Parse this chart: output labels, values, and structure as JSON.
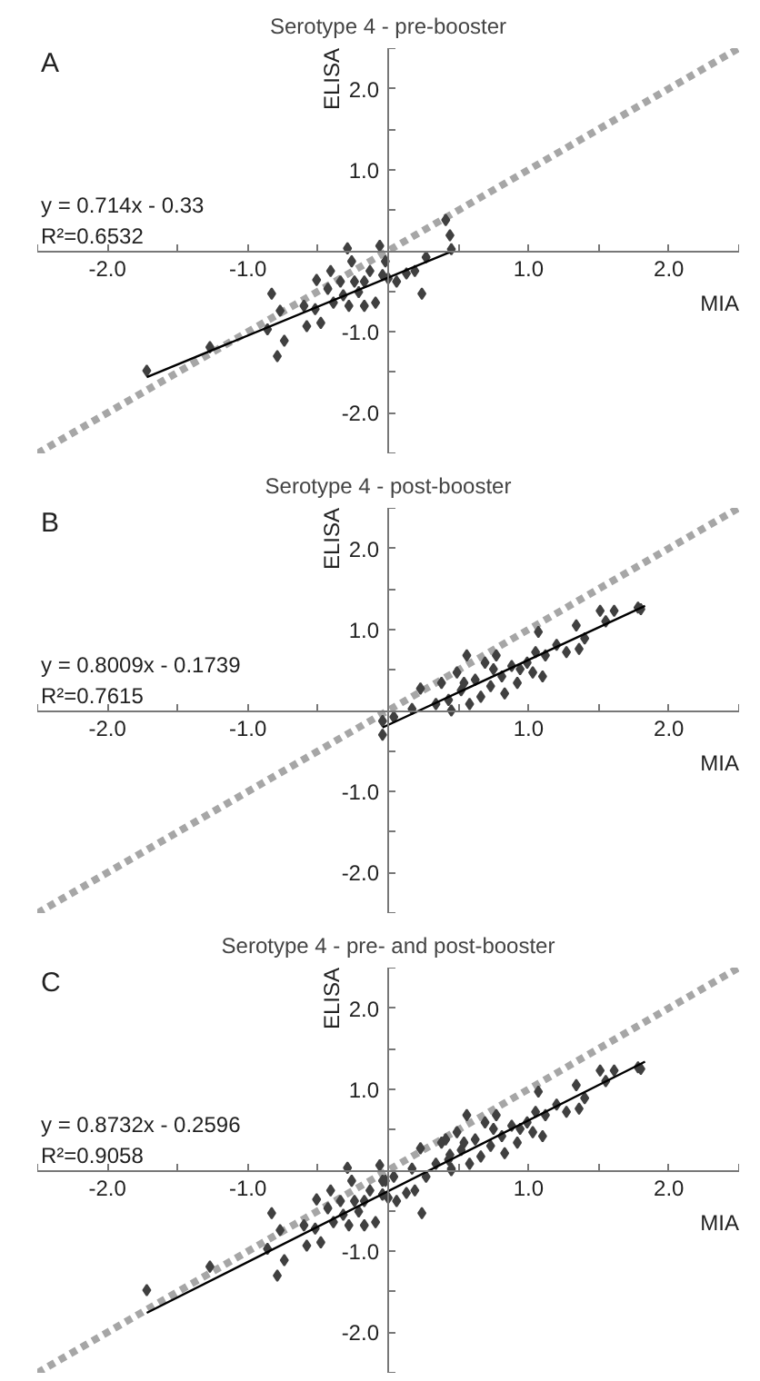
{
  "chart_data": [
    {
      "type": "scatter",
      "title": "Serotype 4 - pre-booster",
      "xlabel": "MIA",
      "ylabel": "ELISA",
      "annotations": [
        "A",
        "y = 0.714x - 0.33",
        "R²=0.6532"
      ],
      "xlim": [
        -2.5,
        2.5
      ],
      "ylim": [
        -2.5,
        2.5
      ],
      "xticks": [
        {
          "value": -2.5,
          "label": null
        },
        {
          "value": -2,
          "label": "-2.0"
        },
        {
          "value": -1.5,
          "label": null
        },
        {
          "value": -1,
          "label": "-1.0"
        },
        {
          "value": -0.5,
          "label": null
        },
        {
          "value": 0.5,
          "label": null
        },
        {
          "value": 1,
          "label": "1.0"
        },
        {
          "value": 1.5,
          "label": null
        },
        {
          "value": 2,
          "label": "2.0"
        },
        {
          "value": 2.5,
          "label": null
        }
      ],
      "yticks": [
        {
          "value": -2.5,
          "label": null
        },
        {
          "value": -2,
          "label": "-2.0"
        },
        {
          "value": -1.5,
          "label": null
        },
        {
          "value": -1,
          "label": "-1.0"
        },
        {
          "value": -0.5,
          "label": null
        },
        {
          "value": 0.5,
          "label": null
        },
        {
          "value": 1,
          "label": "1.0"
        },
        {
          "value": 1.5,
          "label": null
        },
        {
          "value": 2,
          "label": "2.0"
        },
        {
          "value": 2.5,
          "label": null
        }
      ],
      "grid": false,
      "series": [
        {
          "type": "line",
          "color": "#a6a6a6",
          "line_style": "dashed",
          "x": [
            -2.5,
            2.5
          ],
          "values": [
            -2.5,
            2.5
          ]
        },
        {
          "marker": "diamond",
          "color": "#404040",
          "x": [
            -1.72,
            -1.27,
            -0.83,
            -0.86,
            -0.79,
            -0.74,
            -0.77,
            -0.58,
            -0.51,
            -0.48,
            -0.43,
            -0.39,
            -0.34,
            -0.29,
            -0.28,
            -0.26,
            -0.21,
            -0.17,
            -0.13,
            -0.09,
            -0.06,
            -0.02,
            0,
            0.06,
            0.13,
            0.19,
            0.24,
            0.27,
            0.41,
            0.44,
            0.45,
            -0.52,
            -0.32,
            -0.17,
            -0.41,
            -0.04,
            -0.6,
            -0.24
          ],
          "values": [
            -1.48,
            -1.19,
            -0.53,
            -0.97,
            -1.3,
            -1.11,
            -0.74,
            -0.93,
            -0.36,
            -0.89,
            -0.47,
            -0.64,
            -0.38,
            0.03,
            -0.68,
            -0.13,
            -0.51,
            -0.38,
            -0.25,
            -0.64,
            0.06,
            -0.13,
            -0.34,
            -0.38,
            -0.28,
            -0.25,
            -0.53,
            -0.08,
            0.38,
            0.19,
            0.02,
            -0.72,
            -0.55,
            -0.68,
            -0.25,
            -0.3,
            -0.68,
            -0.38
          ]
        },
        {
          "type": "line",
          "color": "#000000",
          "line_style": "solid",
          "x": [
            -1.72,
            0.45
          ],
          "values": [
            -1.56,
            -0.01
          ]
        }
      ]
    },
    {
      "type": "scatter",
      "title": "Serotype 4 - post-booster",
      "xlabel": "MIA",
      "ylabel": "ELISA",
      "annotations": [
        "B",
        "y = 0.8009x - 0.1739",
        "R²=0.7615"
      ],
      "xlim": [
        -2.5,
        2.5
      ],
      "ylim": [
        -2.5,
        2.5
      ],
      "xticks": [
        {
          "value": -2.5,
          "label": null
        },
        {
          "value": -2,
          "label": "-2.0"
        },
        {
          "value": -1.5,
          "label": null
        },
        {
          "value": -1,
          "label": "-1.0"
        },
        {
          "value": -0.5,
          "label": null
        },
        {
          "value": 0.5,
          "label": null
        },
        {
          "value": 1,
          "label": "1.0"
        },
        {
          "value": 1.5,
          "label": null
        },
        {
          "value": 2,
          "label": "2.0"
        },
        {
          "value": 2.5,
          "label": null
        }
      ],
      "yticks": [
        {
          "value": -2.5,
          "label": null
        },
        {
          "value": -2,
          "label": "-2.0"
        },
        {
          "value": -1.5,
          "label": null
        },
        {
          "value": -1,
          "label": "-1.0"
        },
        {
          "value": -0.5,
          "label": null
        },
        {
          "value": 0.5,
          "label": null
        },
        {
          "value": 1,
          "label": "1.0"
        },
        {
          "value": 1.5,
          "label": null
        },
        {
          "value": 2,
          "label": "2.0"
        },
        {
          "value": 2.5,
          "label": null
        }
      ],
      "grid": false,
      "series": [
        {
          "type": "line",
          "color": "#a6a6a6",
          "line_style": "dashed",
          "x": [
            -2.5,
            2.5
          ],
          "values": [
            -2.5,
            2.5
          ]
        },
        {
          "marker": "diamond",
          "color": "#404040",
          "x": [
            -0.04,
            -0.04,
            0.04,
            0.17,
            0.23,
            0.43,
            0.45,
            0.49,
            0.52,
            0.56,
            0.58,
            0.62,
            0.66,
            0.69,
            0.73,
            0.77,
            0.81,
            0.83,
            0.88,
            0.92,
            0.99,
            1.03,
            1.05,
            1.07,
            1.12,
            1.1,
            1.2,
            1.27,
            1.34,
            1.36,
            1.4,
            1.51,
            1.55,
            1.61,
            1.78,
            1.8,
            0.34,
            0.54,
            0.75,
            0.94,
            0.38
          ],
          "values": [
            -0.13,
            -0.3,
            -0.08,
            0.02,
            0.27,
            0.13,
            0,
            0.47,
            0.25,
            0.68,
            0.08,
            0.38,
            0.17,
            0.59,
            0.3,
            0.68,
            0.42,
            0.21,
            0.55,
            0.34,
            0.59,
            0.47,
            0.72,
            0.97,
            0.68,
            0.42,
            0.81,
            0.72,
            1.05,
            0.76,
            0.89,
            1.23,
            1.1,
            1.23,
            1.27,
            1.25,
            0.08,
            0.34,
            0.51,
            0.51,
            0.34
          ]
        },
        {
          "type": "line",
          "color": "#000000",
          "line_style": "solid",
          "x": [
            -0.04,
            1.83
          ],
          "values": [
            -0.21,
            1.29
          ]
        }
      ]
    },
    {
      "type": "scatter",
      "title": "Serotype 4 - pre- and post-booster",
      "xlabel": "MIA",
      "ylabel": "ELISA",
      "annotations": [
        "C",
        "y = 0.8732x - 0.2596",
        "R²=0.9058"
      ],
      "xlim": [
        -2.5,
        2.5
      ],
      "ylim": [
        -2.5,
        2.5
      ],
      "xticks": [
        {
          "value": -2.5,
          "label": null
        },
        {
          "value": -2,
          "label": "-2.0"
        },
        {
          "value": -1.5,
          "label": null
        },
        {
          "value": -1,
          "label": "-1.0"
        },
        {
          "value": -0.5,
          "label": null
        },
        {
          "value": 0.5,
          "label": null
        },
        {
          "value": 1,
          "label": "1.0"
        },
        {
          "value": 1.5,
          "label": null
        },
        {
          "value": 2,
          "label": "2.0"
        },
        {
          "value": 2.5,
          "label": null
        }
      ],
      "yticks": [
        {
          "value": -2.5,
          "label": null
        },
        {
          "value": -2,
          "label": "-2.0"
        },
        {
          "value": -1.5,
          "label": null
        },
        {
          "value": -1,
          "label": "-1.0"
        },
        {
          "value": -0.5,
          "label": null
        },
        {
          "value": 0.5,
          "label": null
        },
        {
          "value": 1,
          "label": "1.0"
        },
        {
          "value": 1.5,
          "label": null
        },
        {
          "value": 2,
          "label": "2.0"
        },
        {
          "value": 2.5,
          "label": null
        }
      ],
      "grid": false,
      "series": [
        {
          "type": "line",
          "color": "#a6a6a6",
          "line_style": "dashed",
          "x": [
            -2.5,
            2.5
          ],
          "values": [
            -2.5,
            2.5
          ]
        },
        {
          "marker": "diamond",
          "color": "#404040",
          "x": [
            -1.72,
            -1.27,
            -0.83,
            -0.86,
            -0.79,
            -0.74,
            -0.77,
            -0.58,
            -0.51,
            -0.48,
            -0.43,
            -0.39,
            -0.34,
            -0.29,
            -0.28,
            -0.26,
            -0.21,
            -0.17,
            -0.13,
            -0.09,
            -0.06,
            -0.02,
            0,
            0.06,
            0.13,
            0.19,
            0.24,
            0.27,
            0.41,
            0.44,
            0.45,
            -0.52,
            -0.32,
            -0.17,
            -0.41,
            -0.04,
            -0.6,
            -0.24,
            -0.04,
            -0.04,
            0.04,
            0.17,
            0.23,
            0.43,
            0.45,
            0.49,
            0.52,
            0.56,
            0.58,
            0.62,
            0.66,
            0.69,
            0.73,
            0.77,
            0.81,
            0.83,
            0.88,
            0.92,
            0.99,
            1.03,
            1.05,
            1.07,
            1.12,
            1.1,
            1.2,
            1.27,
            1.34,
            1.36,
            1.4,
            1.51,
            1.55,
            1.61,
            1.78,
            1.8,
            0.34,
            0.54,
            0.75,
            0.94,
            0.38
          ],
          "values": [
            -1.48,
            -1.19,
            -0.53,
            -0.97,
            -1.3,
            -1.11,
            -0.74,
            -0.93,
            -0.36,
            -0.89,
            -0.47,
            -0.64,
            -0.38,
            0.03,
            -0.68,
            -0.13,
            -0.51,
            -0.38,
            -0.25,
            -0.64,
            0.06,
            -0.13,
            -0.34,
            -0.38,
            -0.28,
            -0.25,
            -0.53,
            -0.08,
            0.38,
            0.19,
            0.02,
            -0.72,
            -0.55,
            -0.68,
            -0.25,
            -0.3,
            -0.68,
            -0.38,
            -0.13,
            -0.3,
            -0.08,
            0.02,
            0.27,
            0.13,
            0,
            0.47,
            0.25,
            0.68,
            0.08,
            0.38,
            0.17,
            0.59,
            0.3,
            0.68,
            0.42,
            0.21,
            0.55,
            0.34,
            0.59,
            0.47,
            0.72,
            0.97,
            0.68,
            0.42,
            0.81,
            0.72,
            1.05,
            0.76,
            0.89,
            1.23,
            1.1,
            1.23,
            1.27,
            1.25,
            0.08,
            0.34,
            0.51,
            0.51,
            0.34
          ]
        },
        {
          "type": "line",
          "color": "#000000",
          "line_style": "solid",
          "x": [
            -1.72,
            1.83
          ],
          "values": [
            -1.76,
            1.34
          ]
        }
      ]
    }
  ]
}
